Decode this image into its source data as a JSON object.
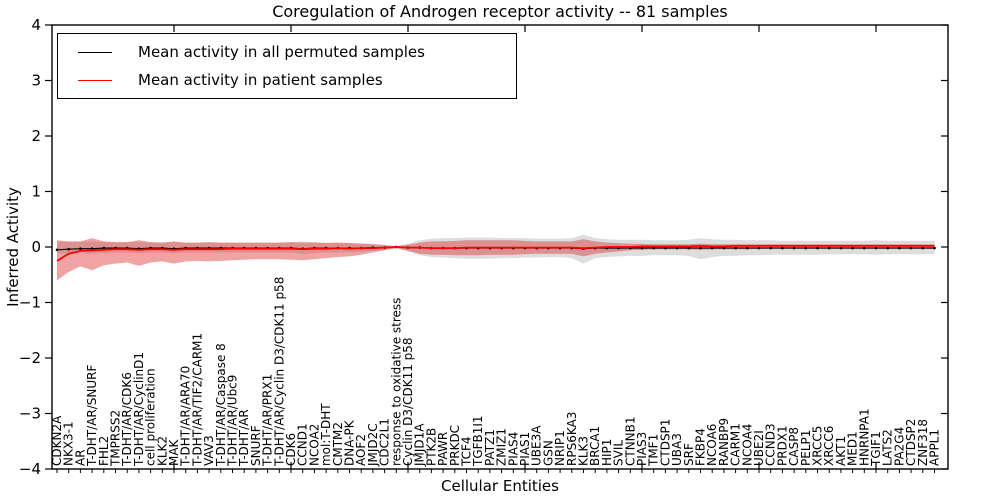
{
  "chart_data": {
    "type": "line",
    "title": "Coregulation of Androgen receptor activity -- 81 samples",
    "xlabel": "Cellular Entities",
    "ylabel": "Inferred Activity",
    "ylim": [
      -4,
      4
    ],
    "grid": false,
    "legend_position": "upper-left",
    "yticks": [
      {
        "v": 4,
        "label": "4"
      },
      {
        "v": 3,
        "label": "3"
      },
      {
        "v": 2,
        "label": "2"
      },
      {
        "v": 1,
        "label": "1"
      },
      {
        "v": 0,
        "label": "0"
      },
      {
        "v": -1,
        "label": "−1"
      },
      {
        "v": -2,
        "label": "−2"
      },
      {
        "v": -3,
        "label": "−3"
      },
      {
        "v": -4,
        "label": "−4"
      }
    ],
    "categories": [
      "CDKN2A",
      "NKX3-1",
      "AR",
      "T-DHT/AR/SNURF",
      "FHL2",
      "TMPRSS2",
      "T-DHT/AR/CDK6",
      "T-DHT/AR/CyclinD1",
      "cell proliferation",
      "KLK2",
      "MAK",
      "T-DHT/AR/ARA70",
      "T-DHT/AR/TIF2/CARM1",
      "VAV3",
      "T-DHT/AR/Caspase 8",
      "T-DHT/AR/Ubc9",
      "T-DHT/AR",
      "SNURF",
      "T-DHT/AR/PRX1",
      "T-DHT/AR/Cyclin D3/CDK11 p58",
      "CDK6",
      "CCND1",
      "NCOA2",
      "mol:T-DHT",
      "CMTM2",
      "DNA-PK",
      "AOF2",
      "JMJD2C",
      "CDC2L1",
      "response to oxidative stress",
      "Cyclin D3/CDK11 p58",
      "JMJD1A",
      "PTK2B",
      "PAWR",
      "PRKDC",
      "TCF4",
      "TGFB1I1",
      "PATZ1",
      "ZMIZ1",
      "PIAS4",
      "PIAS1",
      "UBE3A",
      "GSN",
      "NRIP1",
      "RPS6KA3",
      "KLK3",
      "BRCA1",
      "HIP1",
      "SVIL",
      "CTNNB1",
      "PIAS3",
      "TMF1",
      "CTDSP1",
      "UBA3",
      "SRF",
      "FKBP4",
      "NCOA6",
      "RANBP9",
      "CARM1",
      "NCOA4",
      "UBE2I",
      "CCND3",
      "PRDX1",
      "CASP8",
      "PELP1",
      "XRCC5",
      "XRCC6",
      "AKT1",
      "MED1",
      "HNRNPA1",
      "TGIF1",
      "LATS2",
      "PA2G4",
      "CTDSP2",
      "ZNF318",
      "APPL1"
    ],
    "series": [
      {
        "name": "Mean activity in all permuted samples",
        "color": "#000000",
        "marker": "dot",
        "values": [
          -0.05,
          -0.04,
          -0.03,
          -0.03,
          -0.02,
          -0.02,
          -0.02,
          -0.03,
          -0.02,
          -0.02,
          -0.03,
          -0.02,
          -0.02,
          -0.02,
          -0.02,
          -0.02,
          -0.02,
          -0.02,
          -0.02,
          -0.02,
          -0.02,
          -0.03,
          -0.02,
          -0.02,
          -0.02,
          -0.02,
          -0.02,
          -0.01,
          -0.01,
          0.0,
          -0.01,
          -0.01,
          -0.02,
          -0.02,
          -0.02,
          -0.02,
          -0.02,
          -0.02,
          -0.02,
          -0.02,
          -0.02,
          -0.02,
          -0.02,
          -0.02,
          -0.02,
          -0.03,
          -0.02,
          -0.02,
          -0.02,
          -0.02,
          -0.02,
          -0.02,
          -0.02,
          -0.02,
          -0.02,
          -0.02,
          -0.02,
          -0.02,
          -0.02,
          -0.02,
          -0.02,
          -0.02,
          -0.02,
          -0.02,
          -0.02,
          -0.02,
          -0.02,
          -0.02,
          -0.02,
          -0.02,
          -0.02,
          -0.02,
          -0.02,
          -0.02,
          -0.02,
          -0.02
        ]
      },
      {
        "name": "Mean activity in patient samples",
        "color": "#ff0000",
        "marker": "none",
        "values": [
          -0.25,
          -0.12,
          -0.07,
          -0.06,
          -0.05,
          -0.04,
          -0.04,
          -0.05,
          -0.04,
          -0.04,
          -0.05,
          -0.04,
          -0.04,
          -0.04,
          -0.04,
          -0.03,
          -0.03,
          -0.03,
          -0.03,
          -0.03,
          -0.03,
          -0.04,
          -0.03,
          -0.03,
          -0.02,
          -0.03,
          -0.02,
          -0.02,
          -0.01,
          0.0,
          -0.01,
          -0.01,
          -0.02,
          -0.02,
          -0.02,
          -0.01,
          -0.01,
          -0.01,
          -0.01,
          -0.01,
          -0.01,
          -0.01,
          -0.01,
          -0.01,
          -0.01,
          -0.02,
          -0.01,
          0.0,
          0.0,
          0.0,
          0.01,
          0.01,
          0.01,
          0.01,
          0.01,
          0.02,
          0.01,
          0.01,
          0.02,
          0.02,
          0.02,
          0.02,
          0.02,
          0.02,
          0.02,
          0.02,
          0.02,
          0.02,
          0.02,
          0.02,
          0.02,
          0.02,
          0.02,
          0.02,
          0.02,
          0.02
        ]
      }
    ],
    "bands": [
      {
        "name": "permuted-samples-range",
        "color": "#bbbbbb",
        "opacity": 0.5,
        "upper": [
          0.1,
          0.09,
          0.09,
          0.1,
          0.09,
          0.08,
          0.08,
          0.09,
          0.08,
          0.08,
          0.09,
          0.08,
          0.08,
          0.08,
          0.08,
          0.08,
          0.08,
          0.08,
          0.08,
          0.08,
          0.08,
          0.1,
          0.09,
          0.08,
          0.08,
          0.08,
          0.07,
          0.06,
          0.04,
          0.02,
          0.06,
          0.12,
          0.15,
          0.16,
          0.16,
          0.17,
          0.17,
          0.17,
          0.16,
          0.16,
          0.16,
          0.15,
          0.15,
          0.15,
          0.16,
          0.22,
          0.16,
          0.14,
          0.13,
          0.13,
          0.13,
          0.12,
          0.12,
          0.12,
          0.13,
          0.16,
          0.14,
          0.13,
          0.13,
          0.12,
          0.12,
          0.12,
          0.11,
          0.11,
          0.11,
          0.11,
          0.11,
          0.11,
          0.11,
          0.11,
          0.12,
          0.11,
          0.11,
          0.11,
          0.11,
          0.11
        ],
        "lower": [
          -0.12,
          -0.11,
          -0.11,
          -0.12,
          -0.11,
          -0.1,
          -0.1,
          -0.11,
          -0.1,
          -0.1,
          -0.11,
          -0.1,
          -0.1,
          -0.1,
          -0.1,
          -0.1,
          -0.1,
          -0.1,
          -0.1,
          -0.1,
          -0.1,
          -0.13,
          -0.11,
          -0.1,
          -0.1,
          -0.1,
          -0.09,
          -0.07,
          -0.05,
          -0.02,
          -0.08,
          -0.15,
          -0.18,
          -0.19,
          -0.2,
          -0.21,
          -0.21,
          -0.21,
          -0.2,
          -0.2,
          -0.19,
          -0.19,
          -0.18,
          -0.18,
          -0.2,
          -0.3,
          -0.2,
          -0.18,
          -0.17,
          -0.16,
          -0.16,
          -0.15,
          -0.15,
          -0.15,
          -0.16,
          -0.22,
          -0.18,
          -0.16,
          -0.16,
          -0.15,
          -0.15,
          -0.14,
          -0.14,
          -0.14,
          -0.14,
          -0.14,
          -0.13,
          -0.13,
          -0.13,
          -0.13,
          -0.14,
          -0.13,
          -0.13,
          -0.13,
          -0.13,
          -0.13
        ]
      },
      {
        "name": "patient-samples-range",
        "color": "#dd3333",
        "opacity": 0.45,
        "upper": [
          0.12,
          0.1,
          0.1,
          0.16,
          0.1,
          0.09,
          0.09,
          0.12,
          0.09,
          0.08,
          0.1,
          0.08,
          0.08,
          0.09,
          0.08,
          0.08,
          0.08,
          0.08,
          0.08,
          0.08,
          0.09,
          0.08,
          0.08,
          0.07,
          0.08,
          0.07,
          0.06,
          0.05,
          0.03,
          0.01,
          0.04,
          0.08,
          0.1,
          0.1,
          0.11,
          0.12,
          0.12,
          0.12,
          0.12,
          0.12,
          0.11,
          0.1,
          0.1,
          0.1,
          0.1,
          0.14,
          0.1,
          0.08,
          0.07,
          0.06,
          0.06,
          0.05,
          0.05,
          0.05,
          0.05,
          0.06,
          0.05,
          0.05,
          0.05,
          0.05,
          0.05,
          0.05,
          0.05,
          0.05,
          0.05,
          0.05,
          0.05,
          0.05,
          0.05,
          0.05,
          0.05,
          0.05,
          0.05,
          0.05,
          0.05,
          0.05
        ],
        "lower": [
          -0.6,
          -0.45,
          -0.35,
          -0.42,
          -0.33,
          -0.3,
          -0.28,
          -0.34,
          -0.28,
          -0.26,
          -0.3,
          -0.26,
          -0.25,
          -0.26,
          -0.25,
          -0.24,
          -0.23,
          -0.22,
          -0.22,
          -0.22,
          -0.23,
          -0.24,
          -0.22,
          -0.2,
          -0.18,
          -0.17,
          -0.14,
          -0.1,
          -0.06,
          -0.02,
          -0.07,
          -0.12,
          -0.14,
          -0.14,
          -0.15,
          -0.15,
          -0.15,
          -0.14,
          -0.14,
          -0.14,
          -0.13,
          -0.12,
          -0.12,
          -0.12,
          -0.12,
          -0.17,
          -0.12,
          -0.1,
          -0.08,
          -0.06,
          -0.05,
          -0.04,
          -0.04,
          -0.04,
          -0.04,
          -0.05,
          -0.04,
          -0.04,
          -0.04,
          -0.04,
          -0.03,
          -0.03,
          -0.03,
          -0.03,
          -0.03,
          -0.03,
          -0.03,
          -0.03,
          -0.03,
          -0.03,
          -0.03,
          -0.03,
          -0.03,
          -0.03,
          -0.03,
          -0.03
        ]
      }
    ]
  }
}
